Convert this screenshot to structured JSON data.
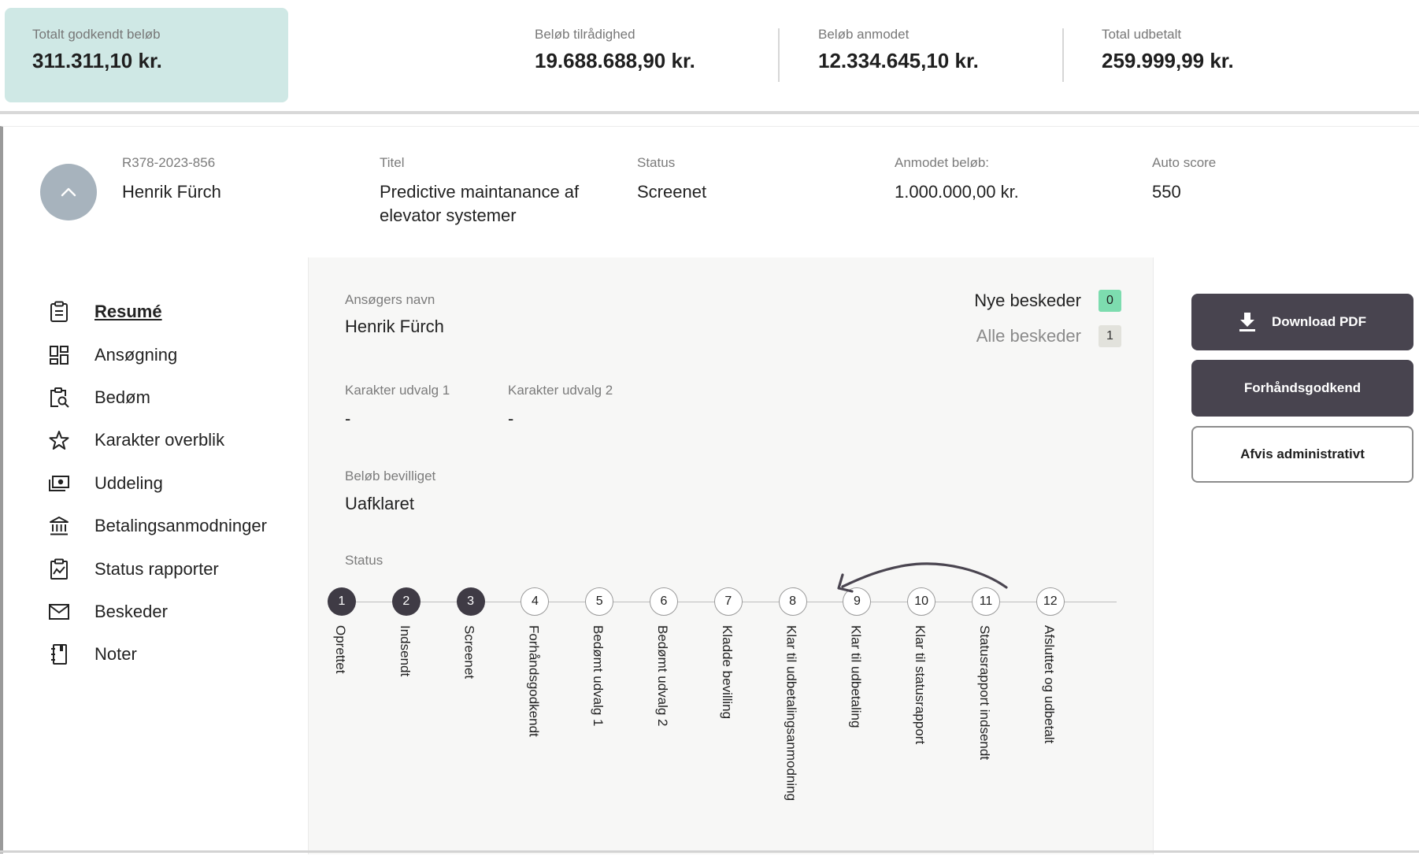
{
  "summary": {
    "approved": {
      "label": "Totalt godkendt beløb",
      "value": "311.311,10 kr."
    },
    "available": {
      "label": "Beløb tilrådighed",
      "value": "19.688.688,90 kr."
    },
    "requested": {
      "label": "Beløb anmodet",
      "value": "12.334.645,10 kr."
    },
    "paid": {
      "label": "Total udbetalt",
      "value": "259.999,99 kr."
    }
  },
  "case": {
    "id": "R378-2023-856",
    "applicant_name": "Henrik Fürch",
    "title_label": "Titel",
    "title_line1": "Predictive maintanance af",
    "title_line2": "elevator systemer",
    "status_label": "Status",
    "status_value": "Screenet",
    "amount_label": "Anmodet beløb:",
    "amount_value": "1.000.000,00 kr.",
    "score_label": "Auto score",
    "score_value": "550"
  },
  "nav": {
    "items": [
      {
        "label": "Resumé",
        "icon": "clipboard-icon"
      },
      {
        "label": "Ansøgning",
        "icon": "dashboard-icon"
      },
      {
        "label": "Bedøm",
        "icon": "clipboard-search-icon"
      },
      {
        "label": "Karakter overblik",
        "icon": "star-icon"
      },
      {
        "label": "Uddeling",
        "icon": "money-icon"
      },
      {
        "label": "Betalingsanmodninger",
        "icon": "bank-icon"
      },
      {
        "label": "Status rapporter",
        "icon": "chart-clipboard-icon"
      },
      {
        "label": "Beskeder",
        "icon": "mail-icon"
      },
      {
        "label": "Noter",
        "icon": "notebook-icon"
      }
    ]
  },
  "details": {
    "applicant_label": "Ansøgers navn",
    "applicant_value": "Henrik Fürch",
    "grade1_label": "Karakter udvalg 1",
    "grade1_value": "-",
    "grade2_label": "Karakter udvalg 2",
    "grade2_value": "-",
    "granted_label": "Beløb bevilliget",
    "granted_value": "Uafklaret",
    "status_label": "Status"
  },
  "messages": {
    "new_label": "Nye beskeder",
    "new_count": "0",
    "all_label": "Alle beskeder",
    "all_count": "1",
    "new_color": "#7ddcaf",
    "all_color": "#e2e2dc"
  },
  "actions": {
    "download_label": "Download PDF",
    "preapprove_label": "Forhåndsgodkend",
    "reject_label": "Afvis administrativt"
  },
  "steps": [
    {
      "num": "1",
      "label": "Oprettet",
      "done": true
    },
    {
      "num": "2",
      "label": "Indsendt",
      "done": true
    },
    {
      "num": "3",
      "label": "Screenet",
      "done": true
    },
    {
      "num": "4",
      "label": "Forhåndsgodkendt",
      "done": false
    },
    {
      "num": "5",
      "label": "Bedømt udvalg 1",
      "done": false
    },
    {
      "num": "6",
      "label": "Bedømt udvalg 2",
      "done": false
    },
    {
      "num": "7",
      "label": "Kladde bevilling",
      "done": false
    },
    {
      "num": "8",
      "label": "Klar til udbetalingsanmodning",
      "done": false
    },
    {
      "num": "9",
      "label": "Klar til udbetaling",
      "done": false
    },
    {
      "num": "10",
      "label": "Klar til statusrapport",
      "done": false
    },
    {
      "num": "11",
      "label": "Statusrapport indsendt",
      "done": false
    },
    {
      "num": "12",
      "label": "Afsluttet og udbetalt",
      "done": false
    }
  ],
  "colors": {
    "highlight": "#cfe8e5",
    "dark_button": "#48444f",
    "step_done": "#3f3b45"
  }
}
